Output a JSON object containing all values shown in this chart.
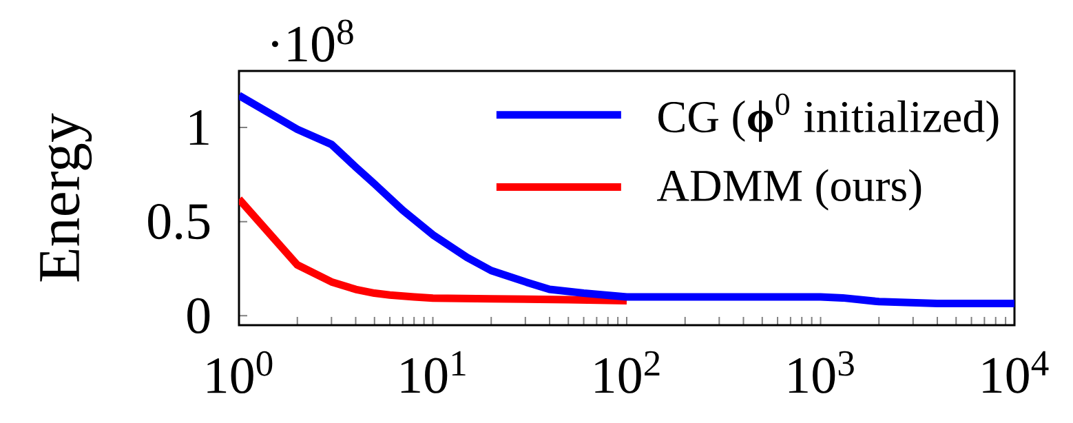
{
  "chart_data": {
    "type": "line",
    "ylabel": "Energy",
    "annotations": [
      "·10$^{8}$"
    ],
    "log": "x",
    "legend": "top right",
    "xlim": [
      1,
      10000
    ],
    "xticks": [
      {
        "value": 1,
        "label": "10$^{0}$"
      },
      {
        "value": 2,
        "label": null
      },
      {
        "value": 3,
        "label": null
      },
      {
        "value": 4,
        "label": null
      },
      {
        "value": 5,
        "label": null
      },
      {
        "value": 6,
        "label": null
      },
      {
        "value": 7,
        "label": null
      },
      {
        "value": 8,
        "label": null
      },
      {
        "value": 9,
        "label": null
      },
      {
        "value": 10,
        "label": "10$^{1}$"
      },
      {
        "value": 20,
        "label": null
      },
      {
        "value": 30,
        "label": null
      },
      {
        "value": 40,
        "label": null
      },
      {
        "value": 50,
        "label": null
      },
      {
        "value": 60,
        "label": null
      },
      {
        "value": 70,
        "label": null
      },
      {
        "value": 80,
        "label": null
      },
      {
        "value": 90,
        "label": null
      },
      {
        "value": 100,
        "label": "10$^{2}$"
      },
      {
        "value": 200,
        "label": null
      },
      {
        "value": 300,
        "label": null
      },
      {
        "value": 400,
        "label": null
      },
      {
        "value": 500,
        "label": null
      },
      {
        "value": 600,
        "label": null
      },
      {
        "value": 700,
        "label": null
      },
      {
        "value": 800,
        "label": null
      },
      {
        "value": 900,
        "label": null
      },
      {
        "value": 1000,
        "label": "10$^{3}$"
      },
      {
        "value": 2000,
        "label": null
      },
      {
        "value": 3000,
        "label": null
      },
      {
        "value": 4000,
        "label": null
      },
      {
        "value": 5000,
        "label": null
      },
      {
        "value": 6000,
        "label": null
      },
      {
        "value": 7000,
        "label": null
      },
      {
        "value": 8000,
        "label": null
      },
      {
        "value": 9000,
        "label": null
      },
      {
        "value": 10000,
        "label": "10$^{4}$"
      }
    ],
    "ylim": [
      -0.05,
      1.3
    ],
    "yticks": [
      0,
      0.5,
      1
    ],
    "series": [
      {
        "name": "CG (**ϕ**$^{0}$ initialized)",
        "color": "#0000ff",
        "x": [
          1,
          2,
          3,
          4,
          5,
          7,
          10,
          15,
          20,
          30,
          40,
          60,
          100,
          1000,
          1300,
          2000,
          4000,
          10000
        ],
        "values": [
          1.17,
          0.99,
          0.91,
          0.79,
          0.7,
          0.56,
          0.43,
          0.31,
          0.24,
          0.18,
          0.14,
          0.12,
          0.1,
          0.1,
          0.095,
          0.075,
          0.065,
          0.065
        ]
      },
      {
        "name": "ADMM (ours)",
        "color": "#ff0000",
        "x": [
          1,
          2,
          3,
          4,
          5,
          6,
          8,
          10,
          20,
          50,
          100
        ],
        "values": [
          0.62,
          0.27,
          0.18,
          0.14,
          0.12,
          0.11,
          0.1,
          0.094,
          0.09,
          0.085,
          0.08
        ]
      }
    ]
  }
}
